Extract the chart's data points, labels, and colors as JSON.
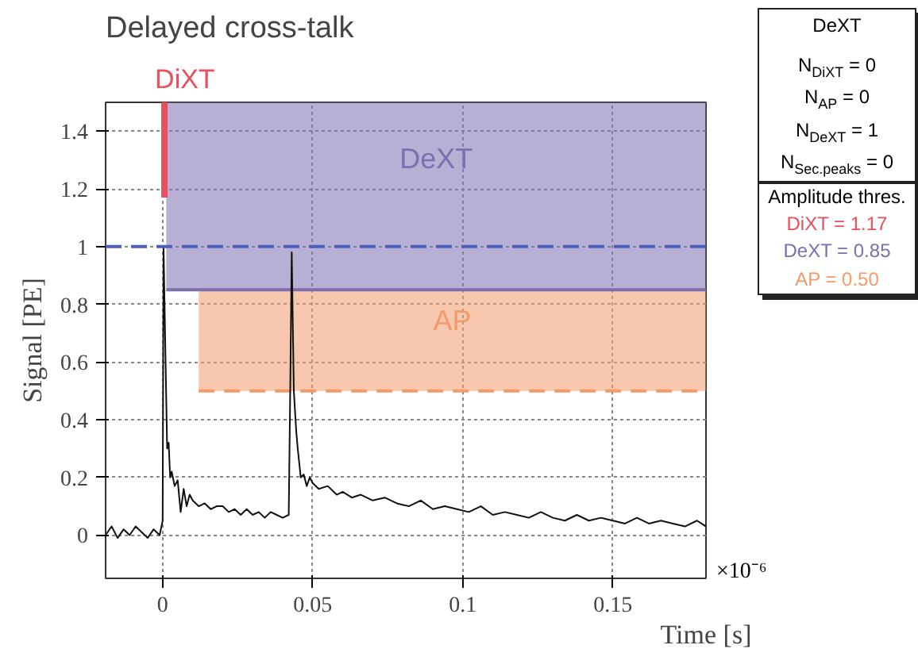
{
  "chart_data": {
    "type": "line",
    "title": "Delayed cross-talk",
    "xlabel": "Time [s]",
    "ylabel": "Signal [PE]",
    "xlim": [
      -0.019,
      0.181
    ],
    "ylim": [
      -0.15,
      1.5
    ],
    "xticks": [
      0,
      0.05,
      0.1,
      0.15
    ],
    "yticks": [
      0,
      0.2,
      0.4,
      0.6,
      0.8,
      1,
      1.2,
      1.4
    ],
    "grid": true,
    "marker": "none",
    "line_style": "solid",
    "series": [
      {
        "type": "line",
        "name": "DiXT",
        "color": "#e8505b",
        "x": [
          0.0006,
          0.0006
        ],
        "values": [
          1.17,
          1.5
        ]
      },
      {
        "type": "line",
        "name": "DeXT",
        "color": "#7b6fb0",
        "x": [
          0.0012,
          0.181
        ],
        "values": [
          0.85,
          0.85
        ],
        "lower": [
          0.85,
          0.85
        ],
        "upper": [
          1.5,
          1.5
        ]
      },
      {
        "type": "line",
        "name": "AP",
        "color": "#f39a6b",
        "line_style": "dashed",
        "x": [
          0.012,
          0.181
        ],
        "values": [
          0.5,
          0.5
        ],
        "lower": [
          0.5,
          0.5
        ],
        "upper": [
          0.85,
          0.85
        ]
      },
      {
        "color": "#111111",
        "x": [
          -0.019,
          -0.017,
          -0.015,
          -0.013,
          -0.011,
          -0.009,
          -0.007,
          -0.005,
          -0.003,
          -0.001,
          0.0,
          0.0003,
          0.0008,
          0.0015,
          0.002,
          0.0025,
          0.003,
          0.004,
          0.005,
          0.006,
          0.007,
          0.008,
          0.009,
          0.01,
          0.012,
          0.014,
          0.016,
          0.018,
          0.02,
          0.022,
          0.024,
          0.026,
          0.028,
          0.03,
          0.032,
          0.034,
          0.036,
          0.038,
          0.04,
          0.042,
          0.0425,
          0.043,
          0.0437,
          0.0445,
          0.045,
          0.046,
          0.047,
          0.048,
          0.049,
          0.05,
          0.052,
          0.055,
          0.058,
          0.06,
          0.063,
          0.066,
          0.07,
          0.074,
          0.078,
          0.082,
          0.086,
          0.09,
          0.094,
          0.098,
          0.102,
          0.106,
          0.11,
          0.114,
          0.118,
          0.122,
          0.126,
          0.13,
          0.134,
          0.138,
          0.142,
          0.146,
          0.15,
          0.154,
          0.158,
          0.162,
          0.166,
          0.17,
          0.174,
          0.178,
          0.181
        ],
        "values": [
          0.0,
          0.03,
          -0.01,
          0.02,
          0.0,
          0.03,
          0.01,
          -0.01,
          0.02,
          0.0,
          0.05,
          1.0,
          0.7,
          0.3,
          0.32,
          0.2,
          0.22,
          0.17,
          0.19,
          0.08,
          0.16,
          0.1,
          0.14,
          0.12,
          0.1,
          0.11,
          0.09,
          0.1,
          0.1,
          0.08,
          0.09,
          0.07,
          0.09,
          0.07,
          0.08,
          0.06,
          0.08,
          0.07,
          0.06,
          0.07,
          0.5,
          0.98,
          0.5,
          0.36,
          0.3,
          0.2,
          0.21,
          0.17,
          0.2,
          0.18,
          0.16,
          0.17,
          0.14,
          0.15,
          0.13,
          0.14,
          0.12,
          0.13,
          0.11,
          0.1,
          0.12,
          0.09,
          0.1,
          0.09,
          0.08,
          0.1,
          0.07,
          0.08,
          0.07,
          0.06,
          0.08,
          0.06,
          0.05,
          0.07,
          0.05,
          0.06,
          0.05,
          0.04,
          0.06,
          0.04,
          0.05,
          0.04,
          0.03,
          0.05,
          0.03
        ]
      }
    ],
    "ref_lines": [
      {
        "axis": "y",
        "value": 1,
        "color": "#4a5fc0",
        "line_style": "dashed"
      }
    ],
    "annotations": [
      "×10⁻⁶",
      "DeXT",
      "N$_{DiXT}$ = 0",
      "N$_{AP}$ = 0",
      "N$_{DeXT}$ = 1",
      "N$_{Sec.peaks}$ = 0",
      "Amplitude thres.",
      "DiXT = 1.17",
      "DeXT = 0.85",
      "AP = 0.50"
    ]
  }
}
